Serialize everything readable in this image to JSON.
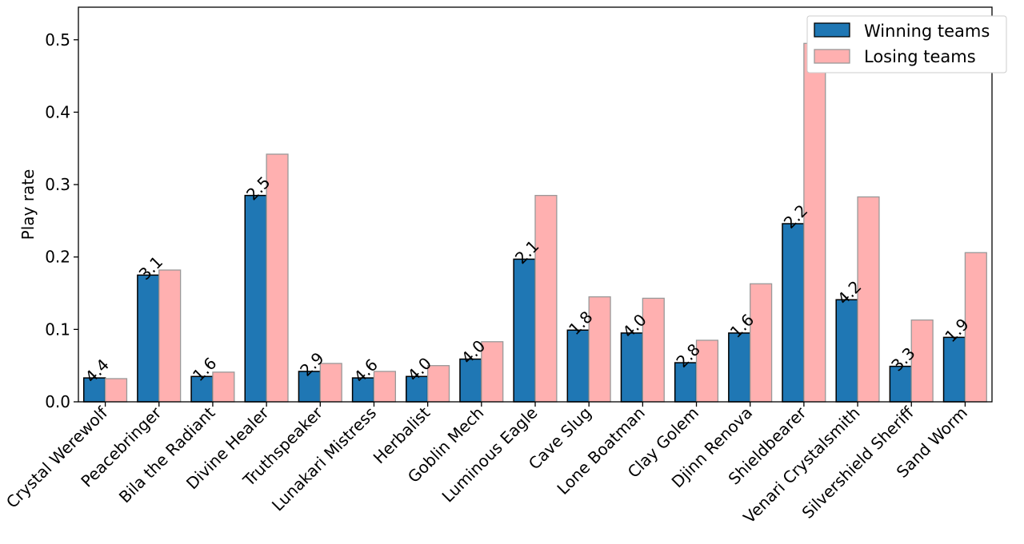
{
  "chart_data": {
    "type": "bar",
    "ylabel": "Play rate",
    "xlabel": "",
    "ylim": [
      0,
      0.545
    ],
    "yticks": [
      "0.0",
      "0.1",
      "0.2",
      "0.3",
      "0.4",
      "0.5"
    ],
    "grid": false,
    "legend_position": "top-right",
    "categories": [
      "Crystal Werewolf",
      "Peacebringer",
      "Bila the Radiant",
      "Divine Healer",
      "Truthspeaker",
      "Lunakari Mistress",
      "Herbalist",
      "Goblin Mech",
      "Luminous Eagle",
      "Cave Slug",
      "Lone Boatman",
      "Clay Golem",
      "Djinn Renova",
      "Shieldbearer",
      "Venari Crystalsmith",
      "Silvershield Sheriff",
      "Sand Worm"
    ],
    "series": [
      {
        "name": "Winning teams",
        "color": "#1f77b4",
        "values": [
          0.033,
          0.175,
          0.035,
          0.285,
          0.042,
          0.033,
          0.035,
          0.059,
          0.197,
          0.099,
          0.095,
          0.054,
          0.095,
          0.246,
          0.141,
          0.049,
          0.089
        ]
      },
      {
        "name": "Losing teams",
        "color": "#ffb0b0",
        "values": [
          0.032,
          0.182,
          0.041,
          0.342,
          0.053,
          0.042,
          0.05,
          0.083,
          0.285,
          0.145,
          0.143,
          0.085,
          0.163,
          0.495,
          0.283,
          0.113,
          0.206
        ]
      }
    ],
    "bar_labels": [
      "4.4",
      "3.1",
      "1.6",
      "2.5",
      "2.9",
      "4.6",
      "4.0",
      "4.0",
      "2.1",
      "1.8",
      "4.0",
      "2.8",
      "1.6",
      "2.2",
      "4.2",
      "3.3",
      "1.9"
    ]
  }
}
